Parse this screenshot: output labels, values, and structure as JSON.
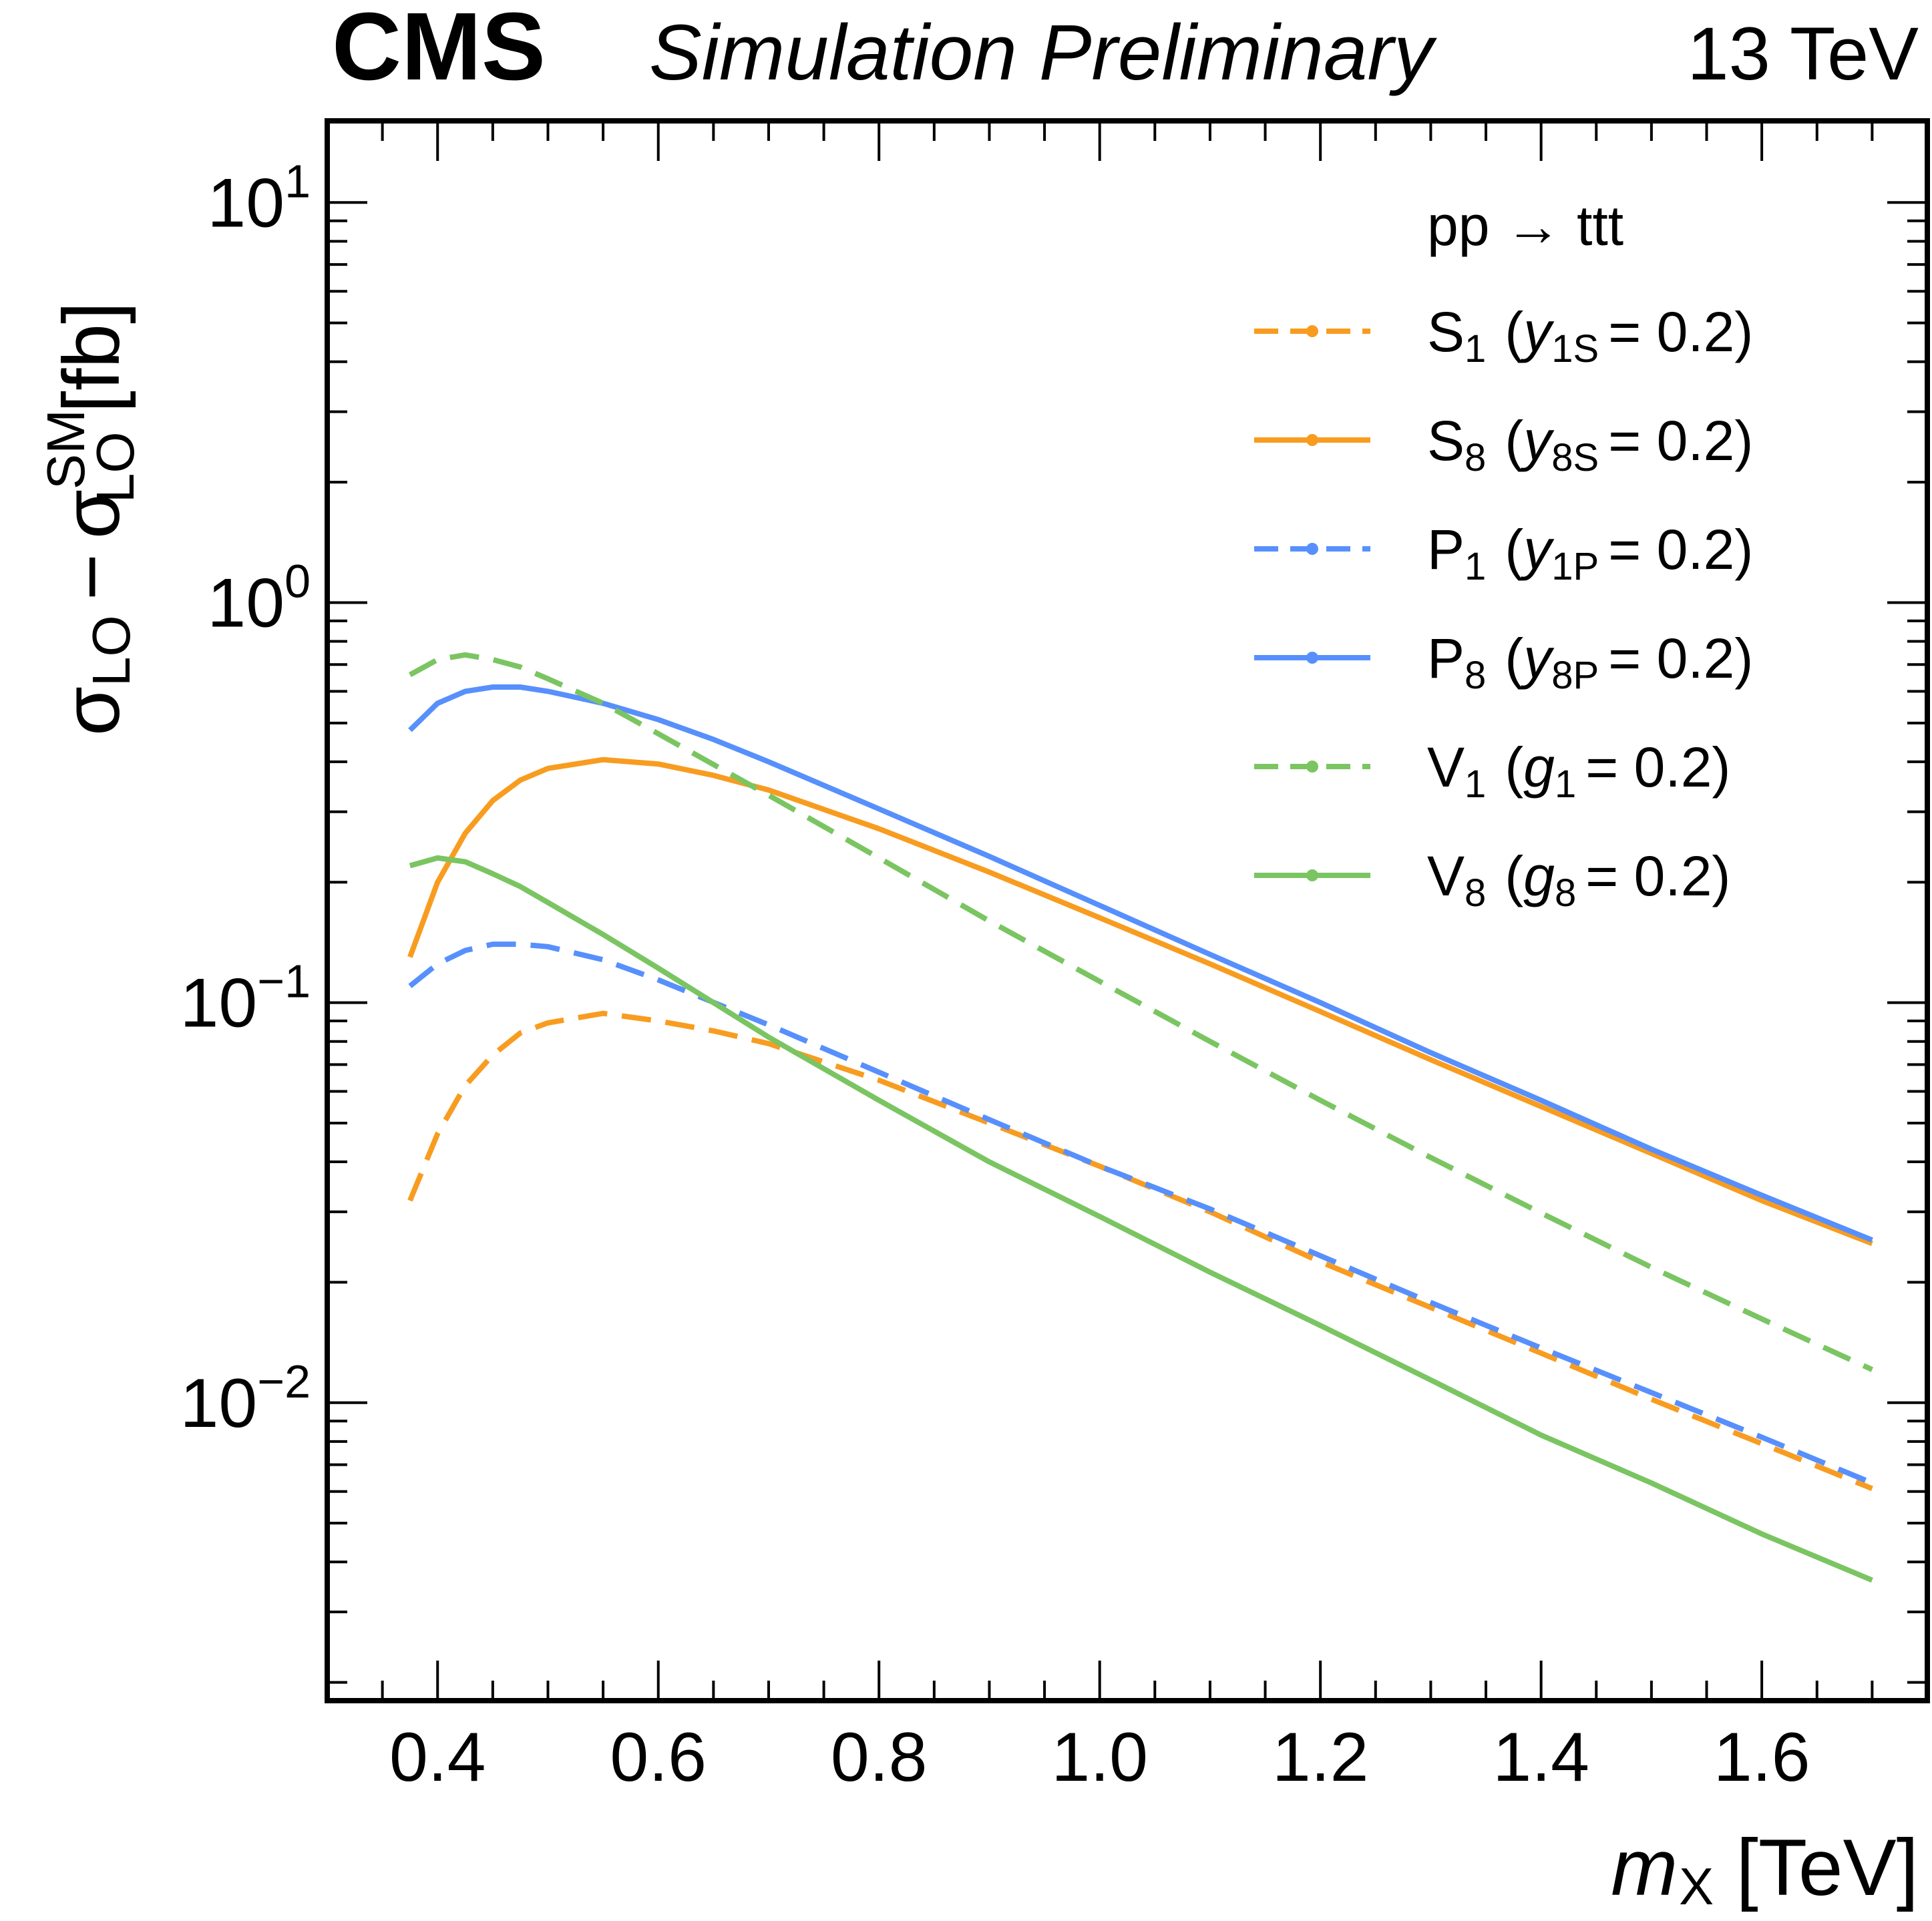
{
  "header": {
    "cms": "CMS",
    "subtitle": "Simulation Preliminary",
    "energy": "13 TeV"
  },
  "chart_data": {
    "type": "line",
    "yscale": "log",
    "xlabel_var": "m",
    "xlabel_sub": "X",
    "xlabel_unit": "[TeV]",
    "ylabel": {
      "sigma1": "σ",
      "sub1": "LO",
      "minus": "−",
      "sigma2": "σ",
      "sub2": "LO",
      "sup2": "SM",
      "unit": "[fb]"
    },
    "xlim": [
      0.3,
      1.75
    ],
    "ylim": [
      0.0018,
      16
    ],
    "xticks": [
      {
        "value": 0.4,
        "label": "0.4"
      },
      {
        "value": 0.6,
        "label": "0.6"
      },
      {
        "value": 0.8,
        "label": "0.8"
      },
      {
        "value": 1.0,
        "label": "1.0"
      },
      {
        "value": 1.2,
        "label": "1.2"
      },
      {
        "value": 1.4,
        "label": "1.4"
      },
      {
        "value": 1.6,
        "label": "1.6"
      }
    ],
    "yticks": [
      {
        "value": 0.01,
        "base": "10",
        "exp": "−2"
      },
      {
        "value": 0.1,
        "base": "10",
        "exp": "−1"
      },
      {
        "value": 1,
        "base": "10",
        "exp": "0"
      },
      {
        "value": 10,
        "base": "10",
        "exp": "1"
      }
    ],
    "legend_header": "pp → ttt",
    "legend_position": "top-right",
    "colors": {
      "orange": "#f89c20",
      "blue": "#5790fc",
      "green": "#7ac562"
    },
    "series": [
      {
        "name": "S1",
        "particle": "S",
        "sub": "1",
        "coupling": "y",
        "coupling_sub": "1S",
        "value": "= 0.2)",
        "color": "#f89c20",
        "dashed": true,
        "x": [
          0.375,
          0.4,
          0.425,
          0.45,
          0.475,
          0.5,
          0.55,
          0.6,
          0.65,
          0.7,
          0.8,
          0.9,
          1.0,
          1.1,
          1.2,
          1.3,
          1.4,
          1.5,
          1.6,
          1.7
        ],
        "y": [
          0.032,
          0.047,
          0.062,
          0.074,
          0.084,
          0.089,
          0.094,
          0.09,
          0.085,
          0.079,
          0.064,
          0.05,
          0.039,
          0.03,
          0.0225,
          0.0173,
          0.0133,
          0.0102,
          0.0079,
          0.0061
        ]
      },
      {
        "name": "S8",
        "particle": "S",
        "sub": "8",
        "coupling": "y",
        "coupling_sub": "8S",
        "value": "= 0.2)",
        "color": "#f89c20",
        "dashed": false,
        "x": [
          0.375,
          0.4,
          0.425,
          0.45,
          0.475,
          0.5,
          0.55,
          0.6,
          0.65,
          0.7,
          0.8,
          0.9,
          1.0,
          1.1,
          1.2,
          1.3,
          1.4,
          1.5,
          1.6,
          1.7
        ],
        "y": [
          0.13,
          0.2,
          0.265,
          0.32,
          0.36,
          0.385,
          0.405,
          0.395,
          0.37,
          0.34,
          0.272,
          0.212,
          0.163,
          0.125,
          0.095,
          0.072,
          0.055,
          0.042,
          0.032,
          0.025
        ]
      },
      {
        "name": "P1",
        "particle": "P",
        "sub": "1",
        "coupling": "y",
        "coupling_sub": "1P",
        "value": "= 0.2)",
        "color": "#5790fc",
        "dashed": true,
        "x": [
          0.375,
          0.4,
          0.425,
          0.45,
          0.475,
          0.5,
          0.55,
          0.6,
          0.7,
          0.8,
          0.9,
          1.0,
          1.1,
          1.2,
          1.3,
          1.4,
          1.5,
          1.6,
          1.7
        ],
        "y": [
          0.11,
          0.125,
          0.135,
          0.14,
          0.14,
          0.138,
          0.128,
          0.114,
          0.088,
          0.067,
          0.051,
          0.039,
          0.0305,
          0.0233,
          0.0178,
          0.0137,
          0.0106,
          0.0082,
          0.0063
        ]
      },
      {
        "name": "P8",
        "particle": "P",
        "sub": "8",
        "coupling": "y",
        "coupling_sub": "8P",
        "value": "= 0.2)",
        "color": "#5790fc",
        "dashed": false,
        "x": [
          0.375,
          0.4,
          0.425,
          0.45,
          0.475,
          0.5,
          0.55,
          0.6,
          0.65,
          0.7,
          0.8,
          0.9,
          1.0,
          1.1,
          1.2,
          1.3,
          1.4,
          1.5,
          1.6,
          1.7
        ],
        "y": [
          0.48,
          0.56,
          0.6,
          0.615,
          0.615,
          0.6,
          0.56,
          0.51,
          0.455,
          0.4,
          0.305,
          0.232,
          0.175,
          0.132,
          0.1,
          0.075,
          0.057,
          0.043,
          0.033,
          0.0255
        ]
      },
      {
        "name": "V1",
        "particle": "V",
        "sub": "1",
        "coupling": "g",
        "coupling_sub": "1",
        "value": "= 0.2)",
        "color": "#7ac562",
        "dashed": true,
        "x": [
          0.375,
          0.4,
          0.425,
          0.45,
          0.475,
          0.5,
          0.55,
          0.6,
          0.7,
          0.8,
          0.9,
          1.0,
          1.1,
          1.2,
          1.3,
          1.4,
          1.5,
          1.6,
          1.7
        ],
        "y": [
          0.66,
          0.72,
          0.74,
          0.72,
          0.69,
          0.645,
          0.56,
          0.47,
          0.33,
          0.23,
          0.16,
          0.113,
          0.08,
          0.057,
          0.041,
          0.0298,
          0.0218,
          0.0162,
          0.0121
        ]
      },
      {
        "name": "V8",
        "particle": "V",
        "sub": "8",
        "coupling": "g",
        "coupling_sub": "8",
        "value": "= 0.2)",
        "color": "#7ac562",
        "dashed": false,
        "x": [
          0.375,
          0.4,
          0.425,
          0.45,
          0.475,
          0.5,
          0.55,
          0.6,
          0.7,
          0.8,
          0.9,
          1.0,
          1.1,
          1.2,
          1.3,
          1.4,
          1.5,
          1.6,
          1.7
        ],
        "y": [
          0.22,
          0.23,
          0.225,
          0.21,
          0.195,
          0.178,
          0.148,
          0.122,
          0.082,
          0.057,
          0.04,
          0.0292,
          0.0212,
          0.0156,
          0.0114,
          0.0083,
          0.0063,
          0.0047,
          0.0036
        ]
      }
    ]
  }
}
